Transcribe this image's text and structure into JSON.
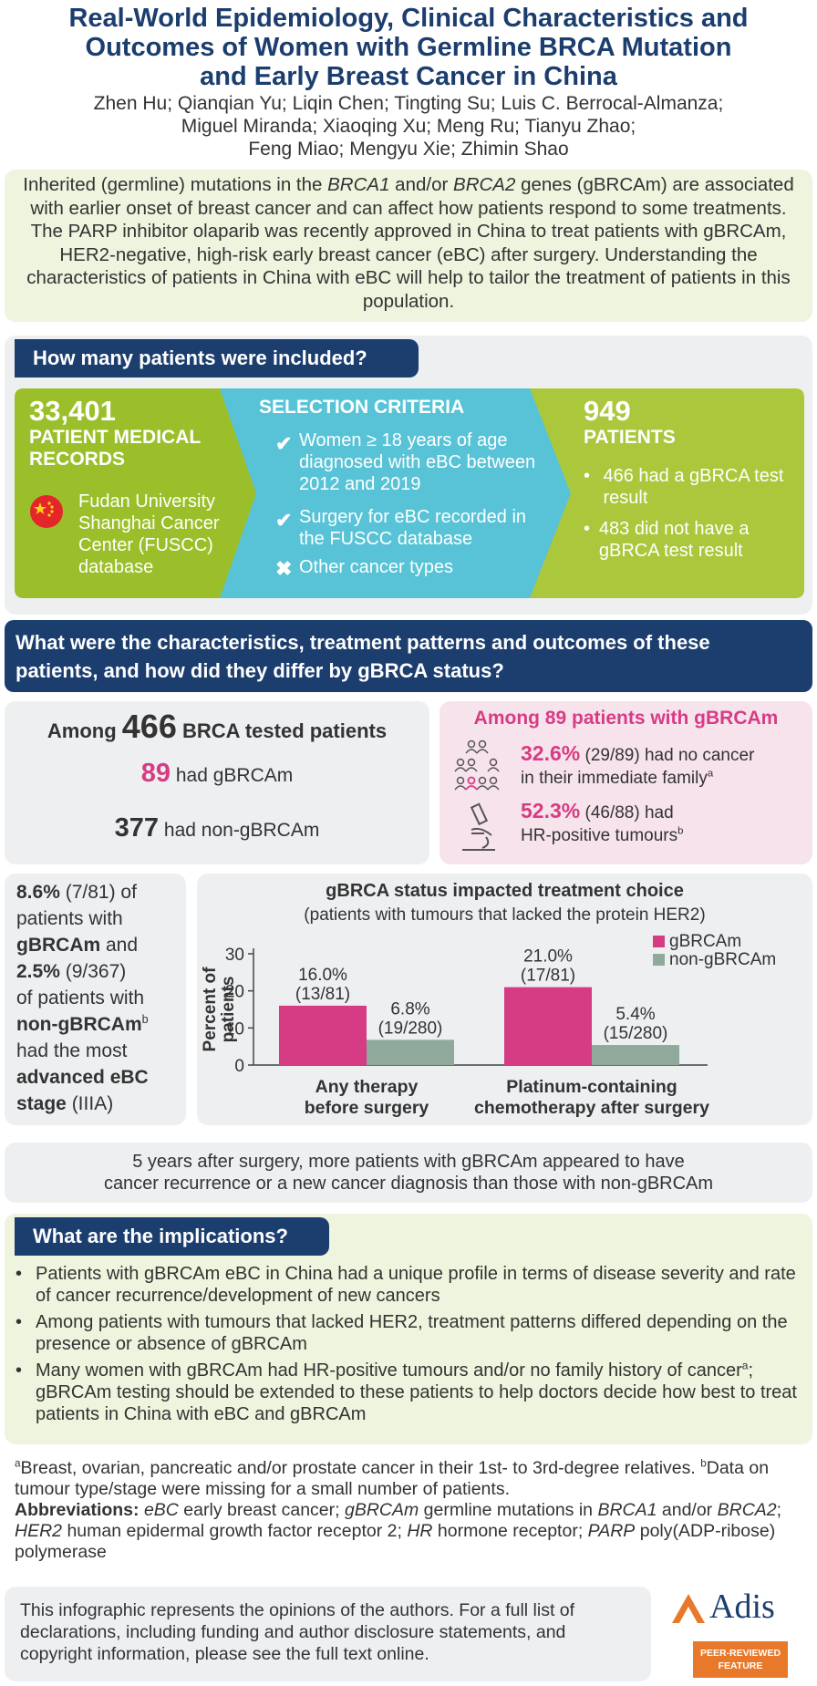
{
  "title": {
    "line1": "Real-World Epidemiology, Clinical Characteristics and",
    "line2": "Outcomes of Women with Germline BRCA Mutation",
    "line3": "and Early Breast Cancer in China"
  },
  "authors": {
    "line1": "Zhen Hu; Qianqian Yu; Liqin Chen; Tingting Su; Luis C. Berrocal-Almanza;",
    "line2": "Miguel Miranda; Xiaoqing Xu; Meng Ru; Tianyu Zhao;",
    "line3": "Feng Miao; Mengyu Xie; Zhimin Shao"
  },
  "intro": {
    "p1": "Inherited (germline) mutations in the ",
    "brca1": "BRCA1",
    "p2": " and/or ",
    "brca2": "BRCA2",
    "p3": " genes (gBRCAm) are associated with earlier onset of breast cancer and can affect how patients respond to some treatments. The PARP inhibitor olaparib was recently approved in China to treat patients with gBRCAm, HER2-negative, high-risk early breast cancer (eBC) after surgery. Understanding the characteristics of patients in China with eBC will help to tailor the treatment of patients in this population."
  },
  "section1": {
    "heading": "How many patients were included?",
    "records_number": "33,401",
    "records_label1": "PATIENT MEDICAL",
    "records_label2": "RECORDS",
    "database": "Fudan University Shanghai Cancer Center (FUSCC) database",
    "criteria_title": "SELECTION CRITERIA",
    "criterion1": "Women ≥ 18 years of age diagnosed with eBC between 2012 and 2019",
    "criterion2": "Surgery for eBC recorded in the FUSCC database",
    "criterion3": "Other cancer types",
    "patients_number": "949",
    "patients_label": "PATIENTS",
    "patients_item1": "466 had a gBRCA test result",
    "patients_item2": "483 did not have a gBRCA test result"
  },
  "section2": {
    "heading_line1": "What were the characteristics, treatment patterns and outcomes of these",
    "heading_line2": "patients, and how did they differ by gBRCA status?",
    "among_prefix": "Among",
    "among_number": "466",
    "among_suffix": "BRCA tested patients",
    "gbrcam_number": "89",
    "gbrcam_label": "had gBRCAm",
    "non_number": "377",
    "non_label": "had non-gBRCAm",
    "pink_heading": "Among 89 patients with gBRCAm",
    "stat1_pct": "32.6%",
    "stat1_text_a": " (29/89) had no cancer",
    "stat1_text_b": "in their immediate family",
    "stat1_sup": "a",
    "stat2_pct": "52.3%",
    "stat2_text_a": " (46/88) had",
    "stat2_text_b": "HR-positive tumours",
    "stat2_sup": "b"
  },
  "stage_box": {
    "pct1": "8.6%",
    "frac1": " (7/81) of",
    "t1": "patients with",
    "g1": "gBRCAm",
    "and": " and",
    "pct2": "2.5%",
    "frac2": " (9/367)",
    "t2": "of patients with",
    "g2": "non-gBRCAm",
    "sup": "b",
    "t3": "had the most",
    "t4": "advanced eBC",
    "t5": "stage",
    "t6": " (IIIA)"
  },
  "chart_data": {
    "type": "bar",
    "title": "gBRCA status impacted treatment choice",
    "subtitle": "(patients with tumours that lacked the protein HER2)",
    "ylabel": "Percent of patients",
    "ylim": [
      0,
      30
    ],
    "yticks": [
      "0",
      "10",
      "20",
      "30"
    ],
    "categories": [
      "Any therapy before surgery",
      "Platinum-containing chemotherapy after surgery"
    ],
    "category_lines": [
      [
        "Any therapy",
        "before surgery"
      ],
      [
        "Platinum-containing",
        "chemotherapy after surgery"
      ]
    ],
    "series": [
      {
        "name": "gBRCAm",
        "color": "#d63c84",
        "values": [
          16.0,
          21.0
        ],
        "labels": [
          [
            "16.0%",
            "(13/81)"
          ],
          [
            "21.0%",
            "(17/81)"
          ]
        ]
      },
      {
        "name": "non-gBRCAm",
        "color": "#8fa99d",
        "values": [
          6.8,
          5.4
        ],
        "labels": [
          [
            "6.8%",
            "(19/280)"
          ],
          [
            "5.4%",
            "(15/280)"
          ]
        ]
      }
    ],
    "legend": "top-right",
    "grid": false
  },
  "recurrence": {
    "line1": "5 years after surgery, more patients with gBRCAm appeared to have",
    "line2": "cancer recurrence or a new cancer diagnosis than those with non-gBRCAm"
  },
  "implications": {
    "heading": "What are the implications?",
    "item1": "Patients with gBRCAm eBC in China had a unique profile in terms of disease severity and rate of cancer recurrence/development of new cancers",
    "item2": "Among patients with tumours that lacked HER2, treatment patterns differed depending on the presence or absence of gBRCAm",
    "item3a": "Many women with gBRCAm had HR-positive tumours and/or no family history of cancer",
    "item3sup": "a",
    "item3b": "; gBRCAm testing should be extended to these patients to help doctors decide how best to treat patients in China with eBC and gBRCAm"
  },
  "footnotes": {
    "a_sup": "a",
    "a_text": "Breast, ovarian, pancreatic and/or prostate cancer in their 1st- to 3rd-degree relatives. ",
    "b_sup": "b",
    "b_text": "Data on tumour type/stage were missing for a small number of patients.",
    "abbr_label": "Abbreviations:",
    "abbr1": "eBC",
    "abbr1t": " early breast cancer; ",
    "abbr2": "gBRCAm",
    "abbr2t": " germline mutations in ",
    "abbr3": "BRCA1",
    "abbr3t": " and/or ",
    "abbr4": "BRCA2",
    "abbr4t": "; ",
    "abbr5": "HER2",
    "abbr5t": " human epidermal growth factor receptor 2; ",
    "abbr6": "HR",
    "abbr6t": " hormone receptor; ",
    "abbr7": "PARP",
    "abbr7t": " poly(ADP-ribose) polymerase"
  },
  "disclaimer": "This infographic represents the opinions of the authors. For a full list of declarations, including funding and author disclosure statements, and copyright information, please see the full text online.",
  "brand": {
    "name": "Adis",
    "badge_line1": "PEER-REVIEWED",
    "badge_line2": "FEATURE"
  },
  "colors": {
    "navy": "#1b3e6f",
    "pink": "#d63c84",
    "grey_green": "#8fa99d",
    "lime": "#9bbf2a",
    "cyan": "#58c3d6",
    "orange": "#e8792a"
  }
}
